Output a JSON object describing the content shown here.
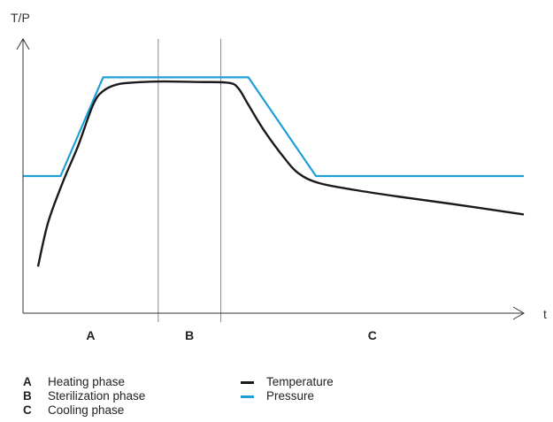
{
  "chart_data": {
    "type": "line",
    "title": "",
    "ylabel": "T/P",
    "xlabel": "t",
    "grid": false,
    "x_range": [
      0,
      100
    ],
    "y_range": [
      0,
      100
    ],
    "phase_boundaries": [
      27,
      39.5
    ],
    "phases": [
      {
        "key": "A",
        "label": "Heating phase"
      },
      {
        "key": "B",
        "label": "Sterilization phase"
      },
      {
        "key": "C",
        "label": "Cooling phase"
      }
    ],
    "series": [
      {
        "name": "Temperature",
        "color": "#1a1a1a",
        "points": [
          [
            3,
            17
          ],
          [
            5,
            33
          ],
          [
            8,
            48
          ],
          [
            11,
            61
          ],
          [
            14,
            76
          ],
          [
            16,
            81
          ],
          [
            19,
            83.5
          ],
          [
            23,
            84.2
          ],
          [
            28,
            84.5
          ],
          [
            35,
            84.3
          ],
          [
            41,
            84
          ],
          [
            43,
            82
          ],
          [
            45,
            76
          ],
          [
            48,
            67
          ],
          [
            52,
            57
          ],
          [
            55,
            51
          ],
          [
            59,
            47.5
          ],
          [
            66,
            45
          ],
          [
            75,
            42.5
          ],
          [
            85,
            40
          ],
          [
            100,
            36
          ]
        ]
      },
      {
        "name": "Pressure",
        "color": "#1e9fd8",
        "points": [
          [
            0,
            50
          ],
          [
            7.5,
            50
          ],
          [
            16,
            86
          ],
          [
            45,
            86
          ],
          [
            58.5,
            50
          ],
          [
            100,
            50
          ]
        ]
      }
    ]
  }
}
